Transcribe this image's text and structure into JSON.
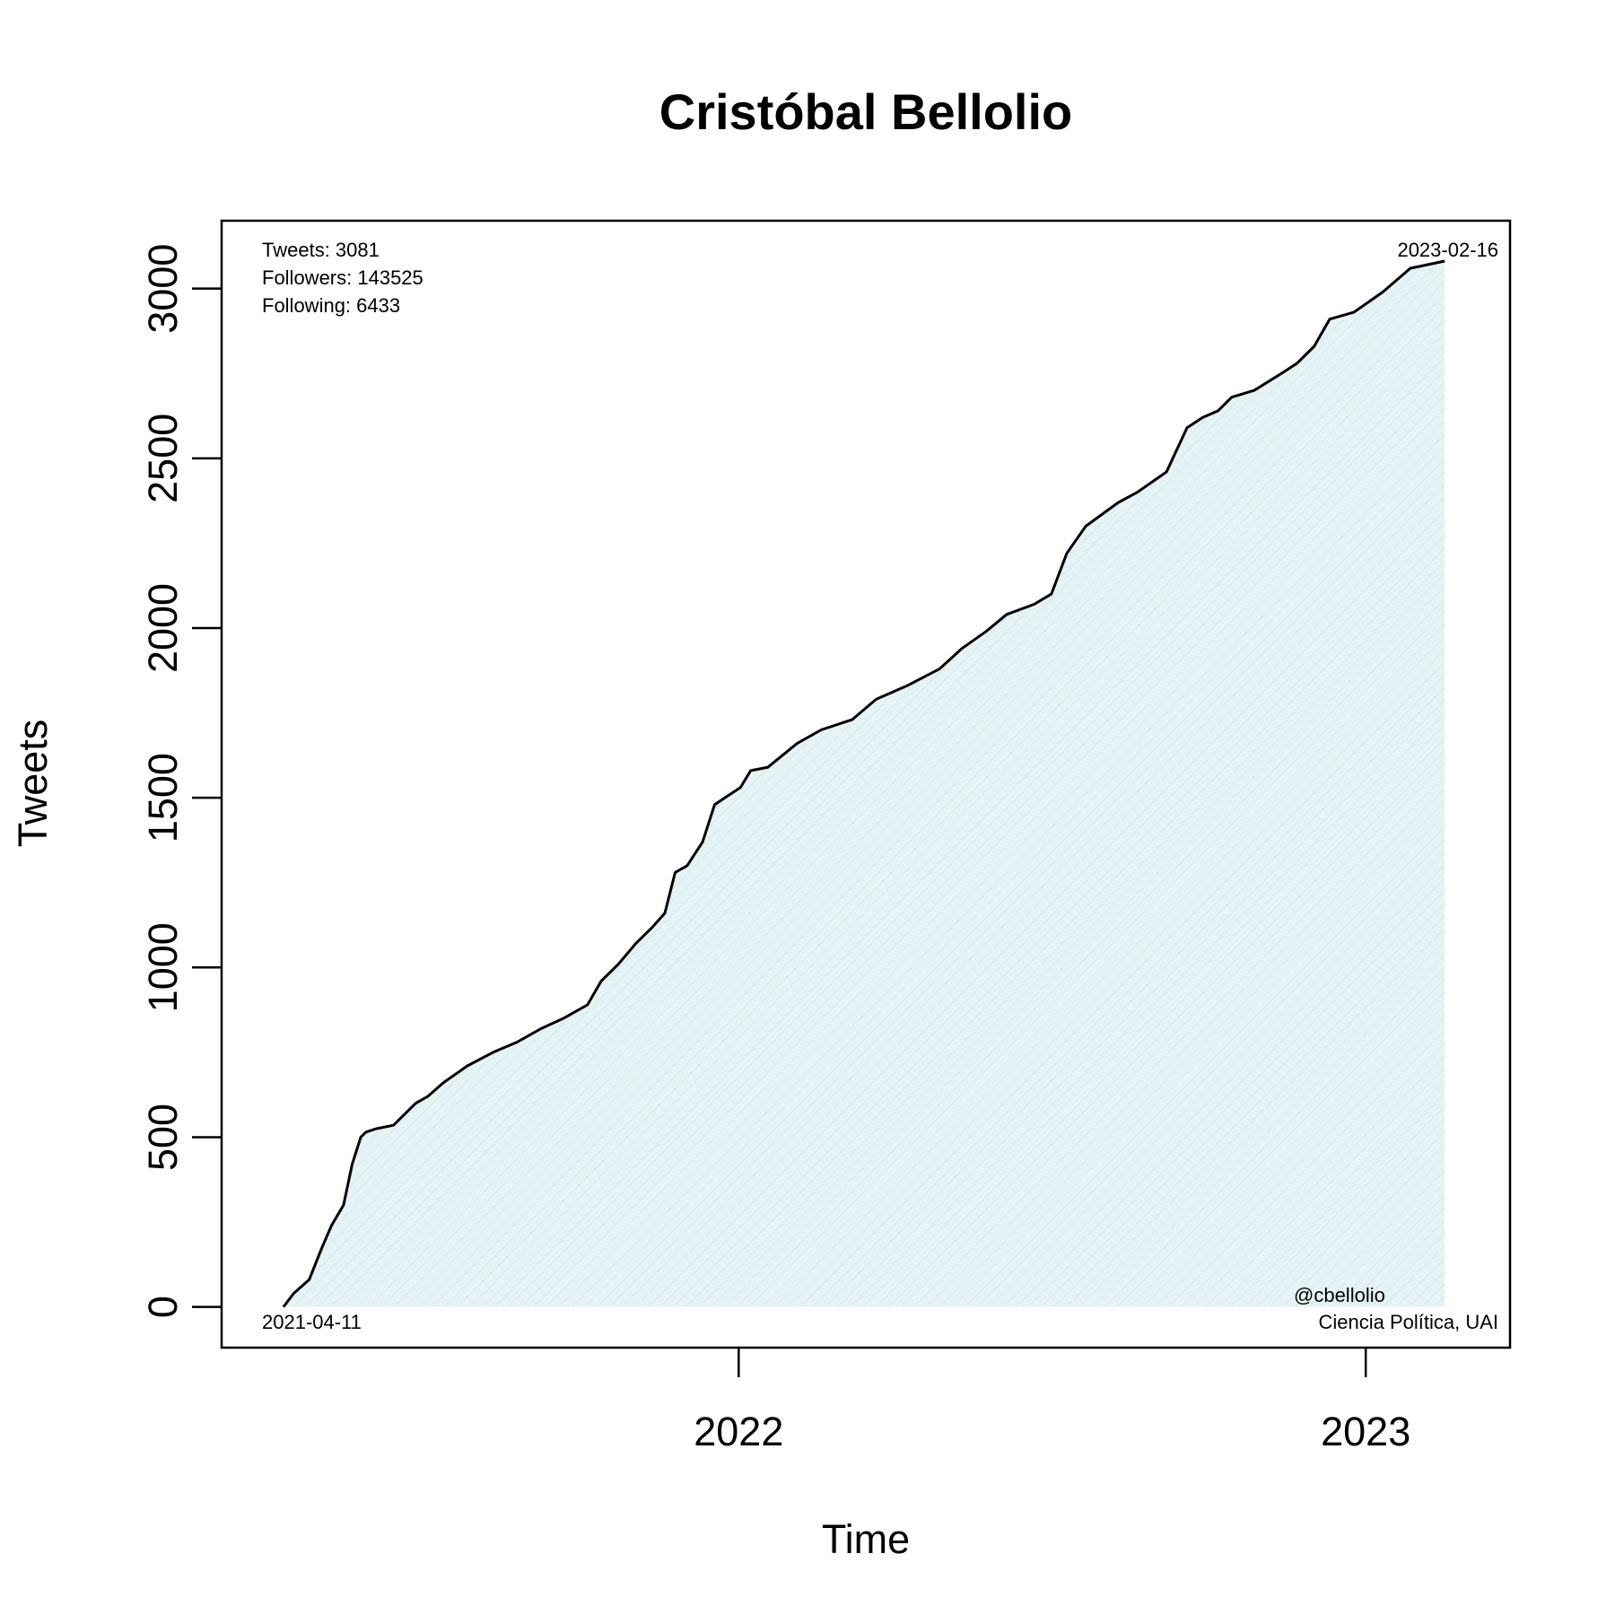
{
  "chart_data": {
    "type": "area",
    "title": "Cristóbal Bellolio",
    "xlabel": "Time",
    "ylabel": "Tweets",
    "x_ticks": [
      "2022",
      "2023"
    ],
    "x_tick_values": [
      "2022-01-01",
      "2023-01-01"
    ],
    "xlim": [
      "2021-03-06",
      "2023-03-26"
    ],
    "y_ticks": [
      "0",
      "500",
      "1000",
      "1500",
      "2000",
      "2500",
      "3000"
    ],
    "y_tick_values": [
      0,
      500,
      1000,
      1500,
      2000,
      2500,
      3000
    ],
    "ylim": [
      -120,
      3200
    ],
    "grid": false,
    "fill_color": "#e6f3f5",
    "line_color": "#000000",
    "annotations": {
      "tweets": "Tweets: 3081",
      "followers": "Followers: 143525",
      "following": "Following: 6433",
      "end_date": "2023-02-16",
      "start_date": "2021-04-11",
      "handle": "@cbellolio",
      "affiliation": "Ciencia Política, UAI"
    },
    "series": [
      {
        "x": [
          "2021-04-11",
          "2021-04-17",
          "2021-04-26",
          "2021-05-03",
          "2021-05-09",
          "2021-05-16",
          "2021-05-21",
          "2021-05-26",
          "2021-05-29",
          "2021-06-04",
          "2021-06-14",
          "2021-06-27",
          "2021-07-04",
          "2021-07-13",
          "2021-07-27",
          "2021-08-11",
          "2021-08-25",
          "2021-09-08",
          "2021-09-21",
          "2021-10-05",
          "2021-10-13",
          "2021-10-23",
          "2021-11-02",
          "2021-11-12",
          "2021-11-19",
          "2021-11-25",
          "2021-12-02",
          "2021-12-11",
          "2021-12-18",
          "2022-01-02",
          "2022-01-08",
          "2022-01-18",
          "2022-02-04",
          "2022-02-18",
          "2022-03-08",
          "2022-03-22",
          "2022-04-09",
          "2022-04-28",
          "2022-05-11",
          "2022-05-25",
          "2022-06-06",
          "2022-06-22",
          "2022-07-02",
          "2022-07-11",
          "2022-07-22",
          "2022-08-10",
          "2022-08-21",
          "2022-09-07",
          "2022-09-19",
          "2022-09-28",
          "2022-10-07",
          "2022-10-15",
          "2022-10-28",
          "2022-11-13",
          "2022-11-22",
          "2022-12-02",
          "2022-12-11",
          "2022-12-25",
          "2023-01-11",
          "2023-01-27",
          "2023-02-16"
        ],
        "y": [
          0,
          40,
          80,
          170,
          240,
          300,
          420,
          500,
          515,
          525,
          535,
          600,
          620,
          660,
          710,
          750,
          780,
          820,
          850,
          890,
          960,
          1010,
          1070,
          1120,
          1160,
          1280,
          1300,
          1370,
          1480,
          1530,
          1580,
          1590,
          1660,
          1700,
          1730,
          1790,
          1830,
          1880,
          1940,
          1990,
          2040,
          2070,
          2100,
          2220,
          2300,
          2370,
          2400,
          2460,
          2590,
          2620,
          2640,
          2680,
          2700,
          2750,
          2780,
          2830,
          2910,
          2930,
          2990,
          3060,
          3081
        ]
      }
    ]
  }
}
